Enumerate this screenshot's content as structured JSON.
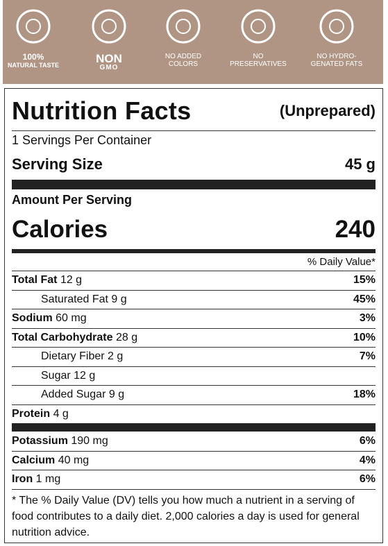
{
  "badges": [
    {
      "line1": "100%",
      "line2": "NATURAL TASTE"
    },
    {
      "line1": "NON",
      "line2": "GMO"
    },
    {
      "line1": "NO ADDED",
      "line2": "COLORS"
    },
    {
      "line1": "NO",
      "line2": "PRESERVATIVES"
    },
    {
      "line1": "NO HYDRO-",
      "line2": "GENATED FATS"
    }
  ],
  "label": {
    "title": "Nutrition Facts",
    "subtitle": "(Unprepared)",
    "servings_per_container": "1 Servings Per Container",
    "serving_size": {
      "label": "Serving Size",
      "value": "45 g"
    },
    "amount_per_serving": "Amount Per Serving",
    "calories": {
      "label": "Calories",
      "value": "240"
    },
    "daily_value_header": "% Daily Value*",
    "nutrients": [
      {
        "name": "Total Fat",
        "amount": "12 g",
        "dv": "15%",
        "sub": [
          {
            "name": "Saturated Fat",
            "amount": "9 g",
            "dv": "45%"
          }
        ]
      },
      {
        "name": "Sodium",
        "amount": "60 mg",
        "dv": "3%"
      },
      {
        "name": "Total Carbohydrate",
        "amount": "28 g",
        "dv": "10%",
        "sub": [
          {
            "name": "Dietary Fiber",
            "amount": "2 g",
            "dv": "7%"
          },
          {
            "name": "Sugar",
            "amount": "12 g"
          },
          {
            "name": "Added Sugar",
            "amount": "9 g",
            "dv": "18%"
          }
        ]
      },
      {
        "name": "Protein",
        "amount": "4 g"
      }
    ],
    "minerals": [
      {
        "name": "Potassium",
        "amount": "190 mg",
        "dv": "6%"
      },
      {
        "name": "Calcium",
        "amount": "40 mg",
        "dv": "4%"
      },
      {
        "name": "Iron",
        "amount": "1 mg",
        "dv": "6%"
      }
    ],
    "footnote": "* The % Daily Value (DV) tells you how much a nutrient in a serving of food contributes to a daily diet. 2,000 calories a day is used for general nutrition advice."
  }
}
